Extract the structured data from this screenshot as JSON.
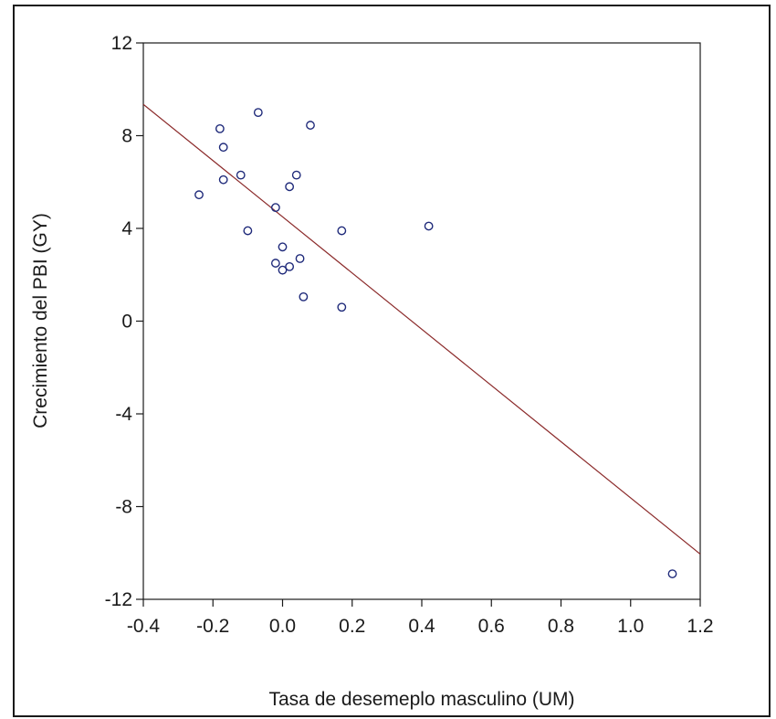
{
  "chart_data": {
    "type": "scatter",
    "title": "",
    "xlabel": "Tasa de desemeplo masculino (UM)",
    "ylabel": "Crecimiento del PBI (GY)",
    "xlim": [
      -0.4,
      1.2
    ],
    "ylim": [
      -12,
      12
    ],
    "xticks": [
      "-0.4",
      "-0.2",
      "0.0",
      "0.2",
      "0.4",
      "0.6",
      "0.8",
      "1.0",
      "1.2"
    ],
    "xtick_values": [
      -0.4,
      -0.2,
      0.0,
      0.2,
      0.4,
      0.6,
      0.8,
      1.0,
      1.2
    ],
    "yticks": [
      "12",
      "8",
      "4",
      "0",
      "-4",
      "-8",
      "-12"
    ],
    "ytick_values": [
      12,
      8,
      4,
      0,
      -4,
      -8,
      -12
    ],
    "grid": false,
    "marker": "hollow circle",
    "point_color": "#1f2a7a",
    "line_color": "#8b2a2a",
    "points": [
      {
        "x": -0.24,
        "y": 5.45
      },
      {
        "x": -0.18,
        "y": 8.3
      },
      {
        "x": -0.17,
        "y": 7.5
      },
      {
        "x": -0.17,
        "y": 6.1
      },
      {
        "x": -0.12,
        "y": 6.3
      },
      {
        "x": -0.1,
        "y": 3.9
      },
      {
        "x": -0.07,
        "y": 9.0
      },
      {
        "x": -0.02,
        "y": 4.9
      },
      {
        "x": -0.02,
        "y": 2.5
      },
      {
        "x": 0.0,
        "y": 3.2
      },
      {
        "x": 0.0,
        "y": 2.2
      },
      {
        "x": 0.02,
        "y": 2.35
      },
      {
        "x": 0.02,
        "y": 5.8
      },
      {
        "x": 0.04,
        "y": 6.3
      },
      {
        "x": 0.05,
        "y": 2.7
      },
      {
        "x": 0.06,
        "y": 1.05
      },
      {
        "x": 0.08,
        "y": 8.45
      },
      {
        "x": 0.17,
        "y": 3.9
      },
      {
        "x": 0.17,
        "y": 0.6
      },
      {
        "x": 0.42,
        "y": 4.1
      },
      {
        "x": 1.12,
        "y": -10.9
      }
    ],
    "fit_line": {
      "x": [
        -0.4,
        1.2
      ],
      "y": [
        9.35,
        -10.05
      ]
    }
  }
}
